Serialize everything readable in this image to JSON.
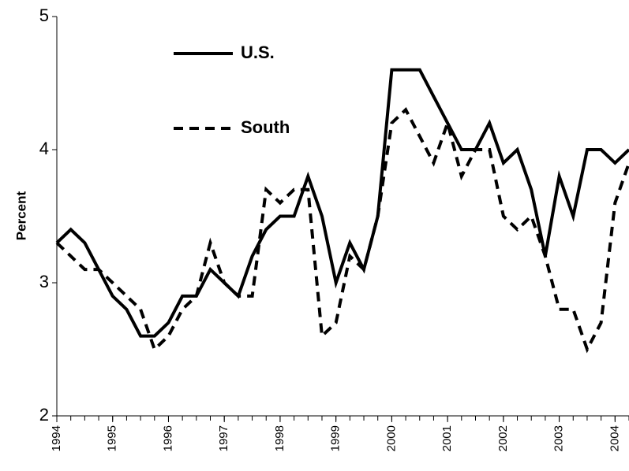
{
  "chart_data": {
    "type": "line",
    "ylabel": "Percent",
    "x": [
      1994,
      1994.25,
      1994.5,
      1994.75,
      1995,
      1995.25,
      1995.5,
      1995.75,
      1996,
      1996.25,
      1996.5,
      1996.75,
      1997,
      1997.25,
      1997.5,
      1997.75,
      1998,
      1998.25,
      1998.5,
      1998.75,
      1999,
      1999.25,
      1999.5,
      1999.75,
      2000,
      2000.25,
      2000.5,
      2000.75,
      2001,
      2001.25,
      2001.5,
      2001.75,
      2002,
      2002.25,
      2002.5,
      2002.75,
      2003,
      2003.25,
      2003.5,
      2003.75,
      2004,
      2004.25
    ],
    "series": [
      {
        "name": "U.S.",
        "color": "#000000",
        "linestyle": "solid",
        "values": [
          3.3,
          3.4,
          3.3,
          3.1,
          2.9,
          2.8,
          2.6,
          2.6,
          2.7,
          2.9,
          2.9,
          3.1,
          3.0,
          2.9,
          3.2,
          3.4,
          3.5,
          3.5,
          3.8,
          3.5,
          3.0,
          3.3,
          3.1,
          3.5,
          4.6,
          4.6,
          4.6,
          4.4,
          4.2,
          4.0,
          4.0,
          4.2,
          3.9,
          4.0,
          3.7,
          3.2,
          3.8,
          3.5,
          4.0,
          4.0,
          3.9,
          4.0
        ]
      },
      {
        "name": "South",
        "color": "#000000",
        "linestyle": "dashed",
        "values": [
          3.3,
          3.2,
          3.1,
          3.1,
          3.0,
          2.9,
          2.8,
          2.5,
          2.6,
          2.8,
          2.9,
          3.3,
          3.0,
          2.9,
          2.9,
          3.7,
          3.6,
          3.7,
          3.7,
          2.6,
          2.7,
          3.2,
          3.1,
          3.5,
          4.2,
          4.3,
          4.1,
          3.9,
          4.2,
          3.8,
          4.0,
          4.0,
          3.5,
          3.4,
          3.5,
          3.2,
          2.8,
          2.8,
          2.5,
          2.7,
          3.6,
          3.9
        ]
      }
    ],
    "xlim": [
      1994,
      2004.25
    ],
    "xticks": [
      1994,
      1995,
      1996,
      1997,
      1998,
      1999,
      2000,
      2001,
      2002,
      2003,
      2004
    ],
    "ylim": [
      2,
      5
    ],
    "yticks": [
      2,
      3,
      4,
      5
    ],
    "grid": false,
    "legend": "upper left"
  }
}
